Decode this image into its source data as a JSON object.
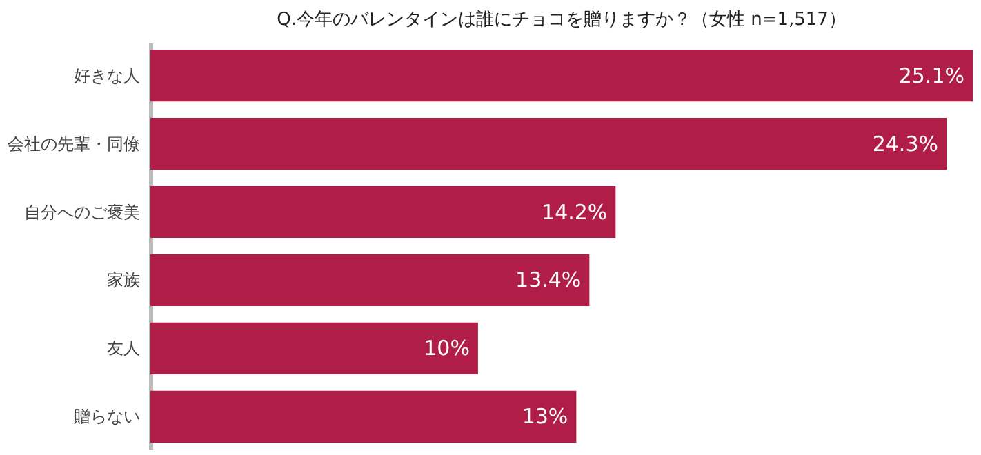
{
  "chart_data": {
    "type": "bar",
    "orientation": "horizontal",
    "title": "Q.今年のバレンタインは誰にチョコを贈りますか？（女性 n=1,517）",
    "categories": [
      "好きな人",
      "会社の先輩・同僚",
      "自分へのご褒美",
      "家族",
      "友人",
      "贈らない"
    ],
    "values": [
      25.1,
      24.3,
      14.2,
      13.4,
      10,
      13
    ],
    "value_labels": [
      "25.1%",
      "24.3%",
      "14.2%",
      "13.4%",
      "10%",
      "13%"
    ],
    "color": "#b01e47"
  }
}
